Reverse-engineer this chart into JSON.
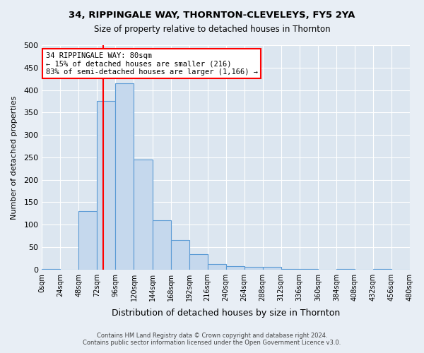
{
  "title1": "34, RIPPINGALE WAY, THORNTON-CLEVELEYS, FY5 2YA",
  "title2": "Size of property relative to detached houses in Thornton",
  "xlabel": "Distribution of detached houses by size in Thornton",
  "ylabel": "Number of detached properties",
  "bar_values": [
    2,
    0,
    130,
    375,
    415,
    245,
    110,
    65,
    35,
    13,
    8,
    6,
    6,
    2,
    1,
    0,
    1,
    0,
    2,
    0
  ],
  "bar_color": "#c5d8ed",
  "bar_edge_color": "#5b9bd5",
  "bin_width": 24,
  "num_bins": 20,
  "x_tick_labels": [
    "0sqm",
    "24sqm",
    "48sqm",
    "72sqm",
    "96sqm",
    "120sqm",
    "144sqm",
    "168sqm",
    "192sqm",
    "216sqm",
    "240sqm",
    "264sqm",
    "288sqm",
    "312sqm",
    "336sqm",
    "360sqm",
    "384sqm",
    "408sqm",
    "432sqm",
    "456sqm",
    "480sqm"
  ],
  "ylim": [
    0,
    500
  ],
  "yticks": [
    0,
    50,
    100,
    150,
    200,
    250,
    300,
    350,
    400,
    450,
    500
  ],
  "annotation_title": "34 RIPPINGALE WAY: 80sqm",
  "annotation_line1": "← 15% of detached houses are smaller (216)",
  "annotation_line2": "83% of semi-detached houses are larger (1,166) →",
  "vline_x": 80,
  "background_color": "#e8eef5",
  "plot_bg_color": "#dce6f0",
  "grid_color": "#ffffff",
  "footer1": "Contains HM Land Registry data © Crown copyright and database right 2024.",
  "footer2": "Contains public sector information licensed under the Open Government Licence v3.0."
}
